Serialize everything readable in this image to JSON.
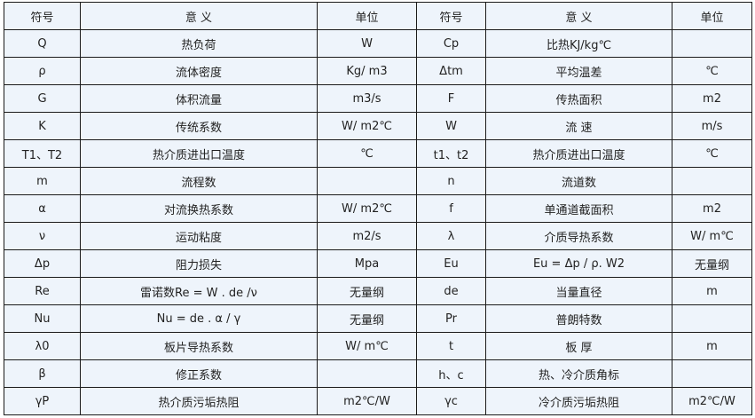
{
  "header": [
    "符号",
    "意 义",
    "单位",
    "符号",
    "意 义",
    "单位"
  ],
  "rows": [
    [
      "Q",
      "热负荷",
      "W",
      "Cp",
      "比热KJ/kg℃",
      ""
    ],
    [
      "ρ",
      "流体密度",
      "Kg/ m3",
      "Δtm",
      "平均温差",
      "℃"
    ],
    [
      "G",
      "体积流量",
      "m3/s",
      "F",
      "传热面积",
      "m2"
    ],
    [
      "K",
      "传统系数",
      "W/ m2℃",
      "W",
      "流 速",
      "m/s"
    ],
    [
      "T1、T2",
      "热介质进出口温度",
      "℃",
      "t1、t2",
      "热介质进出口温度",
      "℃"
    ],
    [
      "m",
      "流程数",
      "",
      "n",
      "流道数",
      ""
    ],
    [
      "α",
      "对流换热系数",
      "W/ m2℃",
      "f",
      "单通道截面积",
      "m2"
    ],
    [
      "ν",
      "运动粘度",
      "m2/s",
      "λ",
      "介质导热系数",
      "W/ m℃"
    ],
    [
      "Δp",
      "阻力损失",
      "Mpa",
      "Eu",
      "Eu = Δp / ρ. W2",
      "无量纲"
    ],
    [
      "Re",
      "雷诺数Re = W  . de /ν",
      "无量纲",
      "de",
      "当量直径",
      "m"
    ],
    [
      "Nu",
      "Nu = de . α / γ",
      "无量纲",
      "Pr",
      "普朗特数",
      ""
    ],
    [
      "λ0",
      "板片导热系数",
      "W/ m℃",
      "t",
      "板 厚",
      "m"
    ],
    [
      "β",
      "修正系数",
      "",
      "h、c",
      "热、冷介质角标",
      ""
    ],
    [
      "γP",
      "热介质污垢热阻",
      "m2℃/W",
      "γc",
      "冷介质污垢热阻",
      "m2℃/W"
    ]
  ]
}
